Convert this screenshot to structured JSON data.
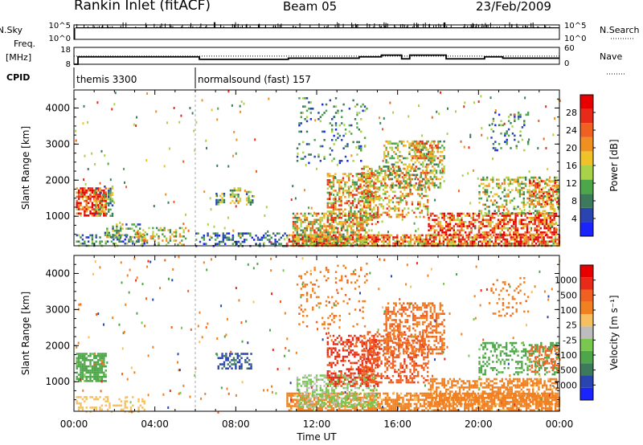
{
  "header": {
    "station": "Rankin Inlet (fitACF)",
    "beam": "Beam 05",
    "date": "23/Feb/2009"
  },
  "chart_data": [
    {
      "type": "line",
      "panel": "noise",
      "left_label": "N.Sky",
      "right_label": "N.Search",
      "left_ticks": [
        "10^5",
        "10^0"
      ],
      "right_ticks": [
        "10^5",
        "10^0"
      ],
      "baseline_level": 0.8,
      "color": "#000000"
    },
    {
      "type": "line",
      "panel": "frequency",
      "left_label_line1": "Freq.",
      "left_label_line2": "[MHz]",
      "right_label": "Nave",
      "left_ticks": [
        "18",
        "8"
      ],
      "right_ticks": [
        "60",
        "0"
      ],
      "series": [
        {
          "quantity": "frequency",
          "steps": [
            [
              0,
              0.2,
              8
            ],
            [
              0.2,
              6.2,
              12.4
            ],
            [
              6.2,
              10.6,
              10.9
            ],
            [
              10.6,
              14.1,
              11.6
            ],
            [
              14.1,
              15.2,
              12.4
            ],
            [
              15.2,
              16.2,
              13.4
            ],
            [
              16.2,
              16.6,
              11.2
            ],
            [
              16.6,
              18.4,
              13.4
            ],
            [
              18.4,
              20.3,
              11.2
            ],
            [
              20.3,
              21.2,
              12.4
            ],
            [
              21.2,
              24,
              11.6
            ]
          ]
        },
        {
          "quantity": "nave",
          "steps": [
            [
              0,
              24,
              29
            ]
          ]
        }
      ]
    },
    {
      "type": "table",
      "panel": "cpid",
      "label": "CPID",
      "segments": [
        {
          "start": 0,
          "end": 6,
          "label": "themis 3300"
        },
        {
          "start": 6,
          "end": 24,
          "label": "normalsound (fast) 157"
        }
      ]
    },
    {
      "type": "heatmap",
      "panel": "power",
      "ylabel": "Slant Range [km]",
      "yticks": [
        1000,
        2000,
        3000,
        4000
      ],
      "ylim": [
        180,
        4500
      ],
      "colorbar": {
        "label": "Power [dB]",
        "ticks": [
          "4",
          "8",
          "12",
          "16",
          "20",
          "24",
          "28"
        ],
        "colors": [
          "#1a24ff",
          "#2a44b0",
          "#3c7a5c",
          "#4ea64a",
          "#a8d24a",
          "#f0c22a",
          "#f09020",
          "#f06020",
          "#e82a18",
          "#e80000"
        ]
      },
      "regions": [
        {
          "t": [
            0.1,
            1.6
          ],
          "r": [
            1000,
            1800
          ],
          "v": 26,
          "d": 0.8
        },
        {
          "t": [
            1.0,
            1.9
          ],
          "r": [
            1000,
            1850
          ],
          "v": 12,
          "d": 0.35
        },
        {
          "t": [
            0.1,
            3.5
          ],
          "r": [
            180,
            500
          ],
          "v": 8,
          "d": 0.35
        },
        {
          "t": [
            1.5,
            3.3
          ],
          "r": [
            400,
            800
          ],
          "v": 12,
          "d": 0.35
        },
        {
          "t": [
            3.0,
            5.5
          ],
          "r": [
            180,
            700
          ],
          "v": 14,
          "d": 0.3
        },
        {
          "t": [
            7.0,
            7.4
          ],
          "r": [
            1350,
            1650
          ],
          "v": 10,
          "d": 0.5
        },
        {
          "t": [
            7.7,
            8.2
          ],
          "r": [
            1350,
            1800
          ],
          "v": 14,
          "d": 0.5
        },
        {
          "t": [
            8.5,
            8.8
          ],
          "r": [
            1350,
            1700
          ],
          "v": 12,
          "d": 0.5
        },
        {
          "t": [
            6.0,
            10.5
          ],
          "r": [
            180,
            550
          ],
          "v": 6,
          "d": 0.35
        },
        {
          "t": [
            10.5,
            24.0
          ],
          "r": [
            180,
            500
          ],
          "v": 22,
          "d": 0.75
        },
        {
          "t": [
            10.8,
            14.5
          ],
          "r": [
            180,
            1100
          ],
          "v": 16,
          "d": 0.6
        },
        {
          "t": [
            12.5,
            15.0
          ],
          "r": [
            800,
            2200
          ],
          "v": 18,
          "d": 0.5
        },
        {
          "t": [
            14.2,
            17.5
          ],
          "r": [
            1000,
            2400
          ],
          "v": 18,
          "d": 0.4
        },
        {
          "t": [
            15.3,
            18.3
          ],
          "r": [
            1800,
            3100
          ],
          "v": 14,
          "d": 0.4
        },
        {
          "t": [
            16.7,
            18.0
          ],
          "r": [
            2600,
            3100
          ],
          "v": 18,
          "d": 0.55
        },
        {
          "t": [
            17.5,
            23.8
          ],
          "r": [
            500,
            1100
          ],
          "v": 24,
          "d": 0.6
        },
        {
          "t": [
            20.0,
            24.0
          ],
          "r": [
            1100,
            2100
          ],
          "v": 14,
          "d": 0.35
        },
        {
          "t": [
            22.5,
            24.0
          ],
          "r": [
            1300,
            2000
          ],
          "v": 22,
          "d": 0.45
        },
        {
          "t": [
            11.0,
            14.5
          ],
          "r": [
            2500,
            4300
          ],
          "v": 8,
          "d": 0.12
        },
        {
          "t": [
            20.5,
            22.5
          ],
          "r": [
            2800,
            3900
          ],
          "v": 8,
          "d": 0.15
        }
      ]
    },
    {
      "type": "heatmap",
      "panel": "velocity",
      "ylabel": "Slant Range [km]",
      "xlabel": "Time UT",
      "xticks": [
        "00:00",
        "04:00",
        "08:00",
        "12:00",
        "16:00",
        "20:00",
        "00:00"
      ],
      "xlim": [
        0,
        24
      ],
      "yticks": [
        1000,
        2000,
        3000,
        4000
      ],
      "ylim": [
        180,
        4500
      ],
      "colorbar": {
        "label": "Velocity [m s⁻¹]",
        "ticks": [
          "1000",
          "500",
          "100",
          "25",
          "-25",
          "-100",
          "-500",
          "-1000"
        ],
        "colors": [
          "#1a24ff",
          "#2a44b0",
          "#3c7a5c",
          "#4ea64a",
          "#78c850",
          "#bdbdbd",
          "#f6c060",
          "#f08020",
          "#f06020",
          "#e82a18",
          "#e80000"
        ]
      },
      "regions": [
        {
          "t": [
            0.1,
            1.6
          ],
          "r": [
            1000,
            1800
          ],
          "v": 150,
          "d": 0.75
        },
        {
          "t": [
            0.1,
            3.5
          ],
          "r": [
            180,
            600
          ],
          "v": -50,
          "d": 0.3
        },
        {
          "t": [
            7.0,
            8.8
          ],
          "r": [
            1350,
            1800
          ],
          "v": 600,
          "d": 0.5
        },
        {
          "t": [
            10.5,
            24.0
          ],
          "r": [
            180,
            700
          ],
          "v": -150,
          "d": 0.65
        },
        {
          "t": [
            11.0,
            15.0
          ],
          "r": [
            300,
            1200
          ],
          "v": 30,
          "d": 0.5
        },
        {
          "t": [
            12.5,
            15.0
          ],
          "r": [
            900,
            2300
          ],
          "v": -600,
          "d": 0.45
        },
        {
          "t": [
            14.2,
            17.5
          ],
          "r": [
            1000,
            2400
          ],
          "v": -400,
          "d": 0.4
        },
        {
          "t": [
            15.3,
            18.3
          ],
          "r": [
            1800,
            3200
          ],
          "v": -250,
          "d": 0.45
        },
        {
          "t": [
            17.5,
            23.8
          ],
          "r": [
            400,
            1100
          ],
          "v": -150,
          "d": 0.55
        },
        {
          "t": [
            20.0,
            24.0
          ],
          "r": [
            1200,
            2100
          ],
          "v": 150,
          "d": 0.35
        },
        {
          "t": [
            22.5,
            24.0
          ],
          "r": [
            1300,
            2000
          ],
          "v": -300,
          "d": 0.4
        },
        {
          "t": [
            11.0,
            14.5
          ],
          "r": [
            2500,
            4300
          ],
          "v": -200,
          "d": 0.1
        },
        {
          "t": [
            20.5,
            22.5
          ],
          "r": [
            2800,
            3900
          ],
          "v": -200,
          "d": 0.15
        }
      ]
    }
  ]
}
